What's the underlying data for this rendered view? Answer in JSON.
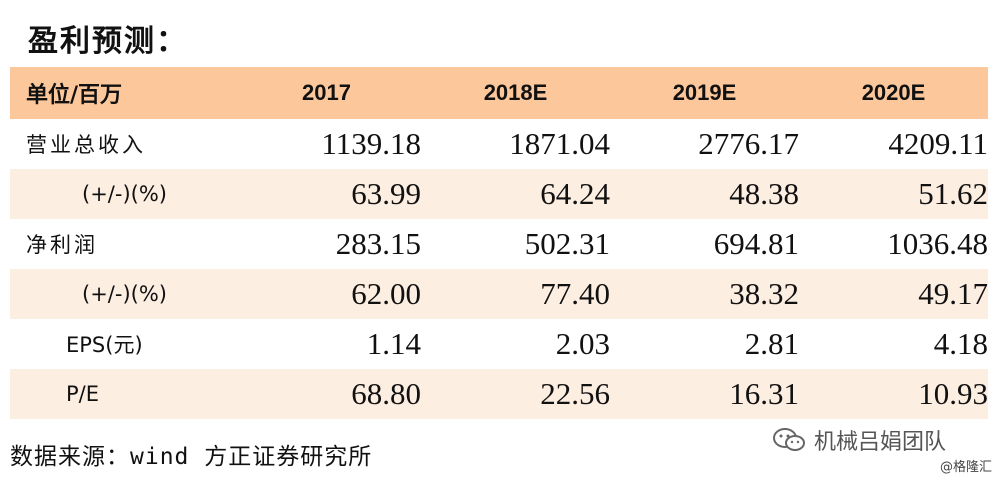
{
  "title": "盈利预测：",
  "table": {
    "unit_label": "单位/百万",
    "columns": [
      "2017",
      "2018E",
      "2019E",
      "2020E"
    ],
    "rows": [
      {
        "label": "营业总收入",
        "values": [
          "1139.18",
          "1871.04",
          "2776.17",
          "4209.11"
        ]
      },
      {
        "label": "(+/-)(%)",
        "values": [
          "63.99",
          "64.24",
          "48.38",
          "51.62"
        ]
      },
      {
        "label": "净利润",
        "values": [
          "283.15",
          "502.31",
          "694.81",
          "1036.48"
        ]
      },
      {
        "label": "(+/-)(%)",
        "values": [
          "62.00",
          "77.40",
          "38.32",
          "49.17"
        ]
      },
      {
        "label": "EPS(元)",
        "values": [
          "1.14",
          "2.03",
          "2.81",
          "4.18"
        ]
      },
      {
        "label": "P/E",
        "values": [
          "68.80",
          "22.56",
          "16.31",
          "10.93"
        ]
      }
    ]
  },
  "source": "数据来源：wind 方正证券研究所",
  "watermark": {
    "icon": "wechat-icon",
    "text": "机械吕娟团队"
  },
  "handle": "@格隆汇",
  "colors": {
    "header_bg": "#fbc79b",
    "stripe_bg": "#fdeee2"
  }
}
